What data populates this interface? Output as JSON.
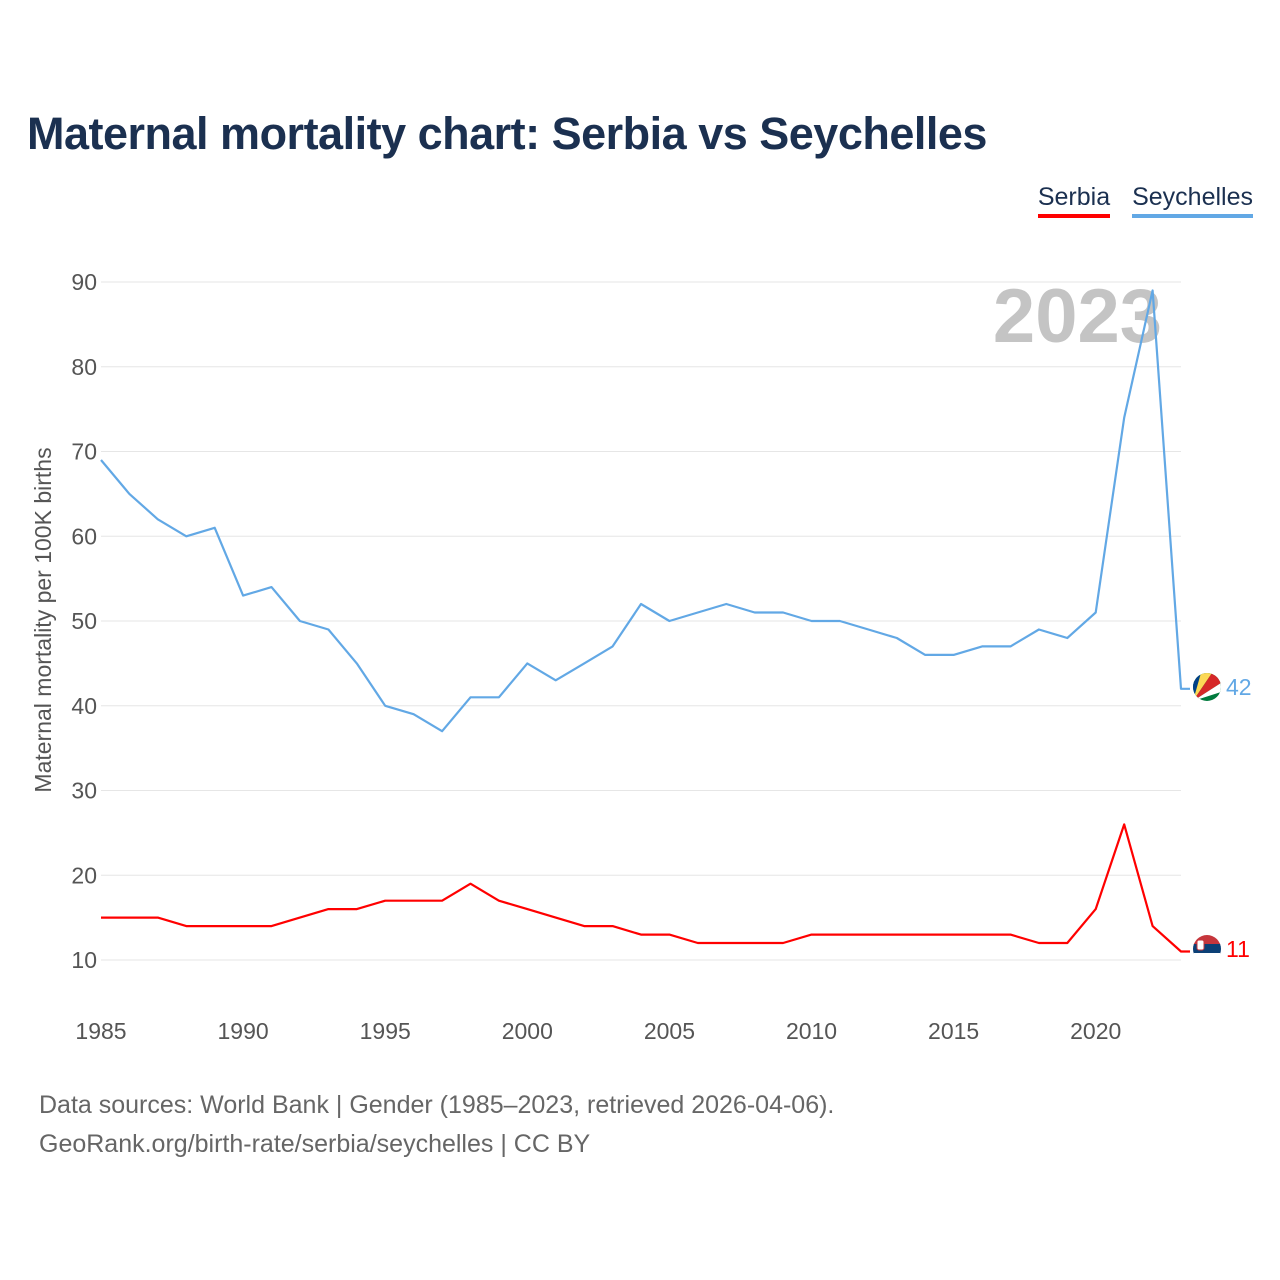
{
  "title": "Maternal mortality chart: Serbia vs Seychelles",
  "legend": [
    {
      "name": "Serbia",
      "color": "#ff0000"
    },
    {
      "name": "Seychelles",
      "color": "#62a8e5"
    }
  ],
  "footer": {
    "line1": "Data sources: World Bank | Gender (1985–2023, retrieved 2026-04-06).",
    "line2": "GeoRank.org/birth-rate/serbia/seychelles | CC BY"
  },
  "chart_data": {
    "type": "line",
    "title": "Maternal mortality chart: Serbia vs Seychelles",
    "ylabel": "Maternal mortality per 100K births",
    "xlabel": "",
    "year_label": "2023",
    "xlim": [
      1985,
      2023
    ],
    "ylim": [
      10,
      90
    ],
    "x_ticks": [
      1985,
      1990,
      1995,
      2000,
      2005,
      2010,
      2015,
      2020
    ],
    "y_ticks": [
      10,
      20,
      30,
      40,
      50,
      60,
      70,
      80,
      90
    ],
    "x": [
      1985,
      1986,
      1987,
      1988,
      1989,
      1990,
      1991,
      1992,
      1993,
      1994,
      1995,
      1996,
      1997,
      1998,
      1999,
      2000,
      2001,
      2002,
      2003,
      2004,
      2005,
      2006,
      2007,
      2008,
      2009,
      2010,
      2011,
      2012,
      2013,
      2014,
      2015,
      2016,
      2017,
      2018,
      2019,
      2020,
      2021,
      2022,
      2023
    ],
    "series": [
      {
        "name": "Seychelles",
        "color": "#62a8e5",
        "end_label": "42",
        "values": [
          69,
          65,
          62,
          60,
          61,
          53,
          54,
          50,
          49,
          45,
          40,
          39,
          37,
          41,
          41,
          45,
          43,
          45,
          47,
          52,
          50,
          51,
          52,
          51,
          51,
          50,
          50,
          49,
          48,
          46,
          46,
          47,
          47,
          49,
          48,
          51,
          74,
          89,
          42
        ]
      },
      {
        "name": "Serbia",
        "color": "#ff0000",
        "end_label": "11",
        "values": [
          15,
          15,
          15,
          14,
          14,
          14,
          14,
          15,
          16,
          16,
          17,
          17,
          17,
          19,
          17,
          16,
          15,
          14,
          14,
          13,
          13,
          12,
          12,
          12,
          12,
          13,
          13,
          13,
          13,
          13,
          13,
          13,
          13,
          12,
          12,
          16,
          26,
          14,
          11
        ]
      }
    ]
  }
}
